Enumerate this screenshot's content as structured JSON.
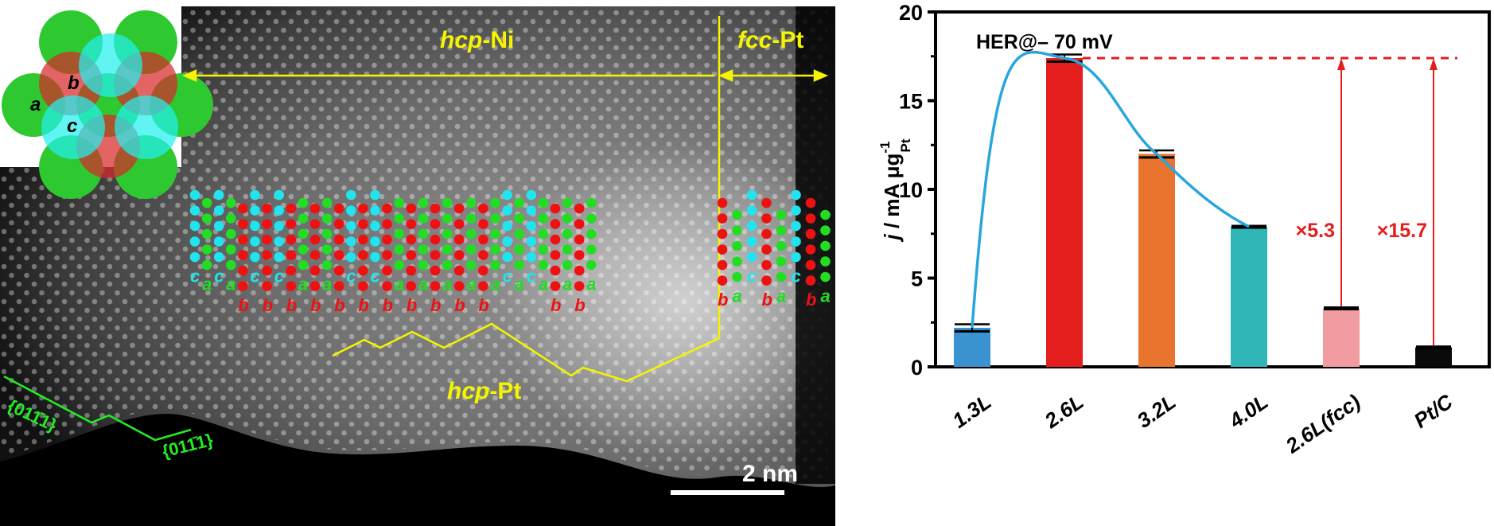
{
  "stem_image": {
    "labels": {
      "hcp_ni_italic": "hcp",
      "hcp_ni_rest": "-Ni",
      "fcc_pt_italic": "fcc",
      "fcc_pt_rest": "-Pt",
      "hcp_pt_italic": "hcp",
      "hcp_pt_rest": "-Pt",
      "scale_bar": "2 nm",
      "facet_1": "{011̄1}",
      "facet_2": "{011̄1}"
    },
    "inset_labels": {
      "a": "a",
      "b": "b",
      "c": "c"
    },
    "stacking_sequence": [
      "c",
      "a",
      "c",
      "a",
      "b",
      "c",
      "b",
      "c",
      "b",
      "a",
      "b",
      "a",
      "b",
      "c",
      "b",
      "c",
      "b",
      "a",
      "b",
      "a",
      "b",
      "a",
      "b",
      "a",
      "b",
      "a",
      "c",
      "a",
      "c",
      "a",
      "b",
      "a",
      "b",
      "a",
      "b",
      "a",
      "c",
      "b",
      "a",
      "c",
      "b",
      "a"
    ],
    "colors": {
      "annotation_yellow": "#f5f500",
      "site_a": "#22dd22",
      "site_b": "#ee1111",
      "site_c": "#22e4ee",
      "facet_green": "#22ee22"
    }
  },
  "chart_data": {
    "type": "bar",
    "title": "",
    "annotation": "HER@– 70 mV",
    "xlabel": "",
    "ylabel_main": "j",
    "ylabel_units": " / mA μg",
    "ylabel_sup": "-1",
    "ylabel_sub": "Pt",
    "ylim": [
      0,
      20
    ],
    "yticks": [
      0,
      5,
      10,
      15,
      20
    ],
    "yticks_minor": [
      2.5,
      7.5,
      12.5,
      17.5
    ],
    "categories": [
      "1.3L",
      "2.6L",
      "3.2L",
      "4.0L",
      "2.6L(fcc)",
      "Pt/C"
    ],
    "values": [
      2.2,
      17.4,
      12.0,
      7.9,
      3.3,
      1.1
    ],
    "errors": [
      0.2,
      0.2,
      0.2,
      0.05,
      0.05,
      0.05
    ],
    "bar_colors": [
      "#3a92d0",
      "#e41e1c",
      "#e8742e",
      "#31b6b7",
      "#f19ca0",
      "#0a0a0a"
    ],
    "trend_line": {
      "color": "#2aa6de",
      "through_categories": [
        "1.3L",
        "2.6L",
        "3.2L",
        "4.0L"
      ]
    },
    "reference_line": {
      "value": 17.4,
      "color": "#e41e1c",
      "style": "dashed"
    },
    "enhancements": [
      {
        "label": "×5.3",
        "from_category": "2.6L(fcc)"
      },
      {
        "label": "×15.7",
        "from_category": "Pt/C"
      }
    ],
    "grid": false
  }
}
